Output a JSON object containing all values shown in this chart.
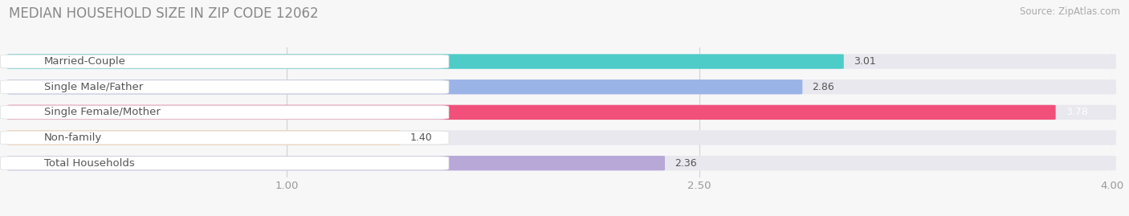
{
  "title": "MEDIAN HOUSEHOLD SIZE IN ZIP CODE 12062",
  "source": "Source: ZipAtlas.com",
  "categories": [
    "Married-Couple",
    "Single Male/Father",
    "Single Female/Mother",
    "Non-family",
    "Total Households"
  ],
  "values": [
    3.01,
    2.86,
    3.78,
    1.4,
    2.36
  ],
  "bar_colors": [
    "#4eccc8",
    "#9bb4e8",
    "#f0507a",
    "#f5c89a",
    "#b8a8d8"
  ],
  "xlim_data": [
    0.0,
    4.0
  ],
  "xmin": 0.0,
  "xmax": 4.0,
  "xticks": [
    1.0,
    2.5,
    4.0
  ],
  "title_fontsize": 12,
  "label_fontsize": 9.5,
  "value_fontsize": 9,
  "source_fontsize": 8.5,
  "bar_height": 0.55,
  "background_color": "#f7f7f7",
  "bar_bg_color": "#e8e8ee",
  "label_text_color": "#555555",
  "value_text_color": "#555555",
  "grid_color": "#d0d0d8"
}
